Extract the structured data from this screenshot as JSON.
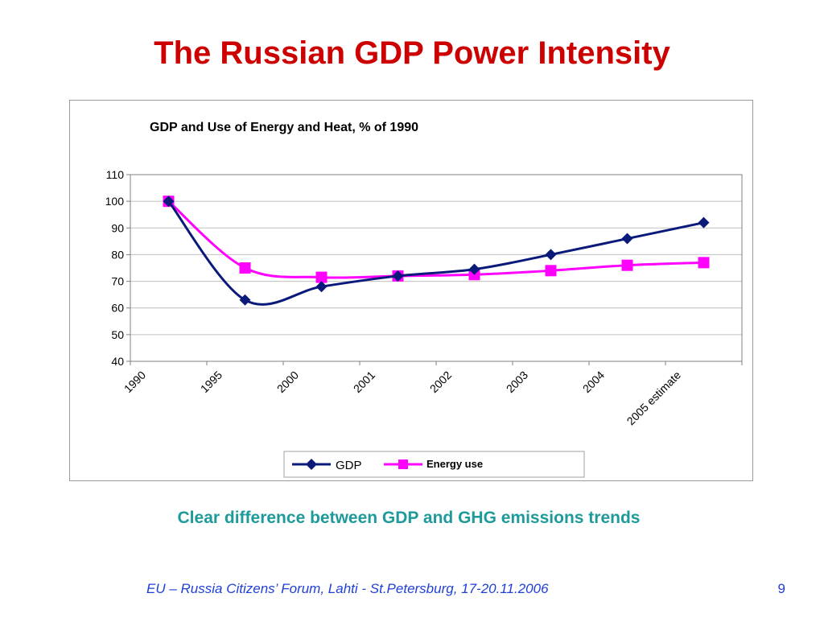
{
  "slide": {
    "title": "The Russian GDP Power Intensity",
    "caption": "Clear difference between GDP and GHG emissions trends",
    "footer": "EU – Russia Citizens’ Forum, Lahti  - St.Petersburg, 17-20.11.2006",
    "page_number": "9"
  },
  "colors": {
    "title": "#cc0000",
    "caption": "#1f9a9a",
    "footer": "#1f3fd6",
    "gdp_series": "#0a1a7a",
    "energy_series": "#ff00ff",
    "grid": "#c0c0c0",
    "axis": "#808080"
  },
  "chart_data": {
    "type": "line",
    "title": "GDP and Use of Energy and Heat, % of 1990",
    "categories": [
      "1990",
      "1995",
      "2000",
      "2001",
      "2002",
      "2003",
      "2004",
      "2005   estimate"
    ],
    "ylim": [
      40,
      110
    ],
    "yticks": [
      40,
      50,
      60,
      70,
      80,
      90,
      100,
      110
    ],
    "grid": true,
    "legend": "bottom",
    "series": [
      {
        "name": "GDP",
        "marker": "diamond",
        "values": [
          100,
          63,
          68,
          72,
          74.5,
          80,
          86,
          92
        ]
      },
      {
        "name": "Energy use",
        "marker": "square",
        "values": [
          100,
          75,
          71.5,
          72,
          72.5,
          74,
          76,
          77
        ]
      }
    ]
  }
}
